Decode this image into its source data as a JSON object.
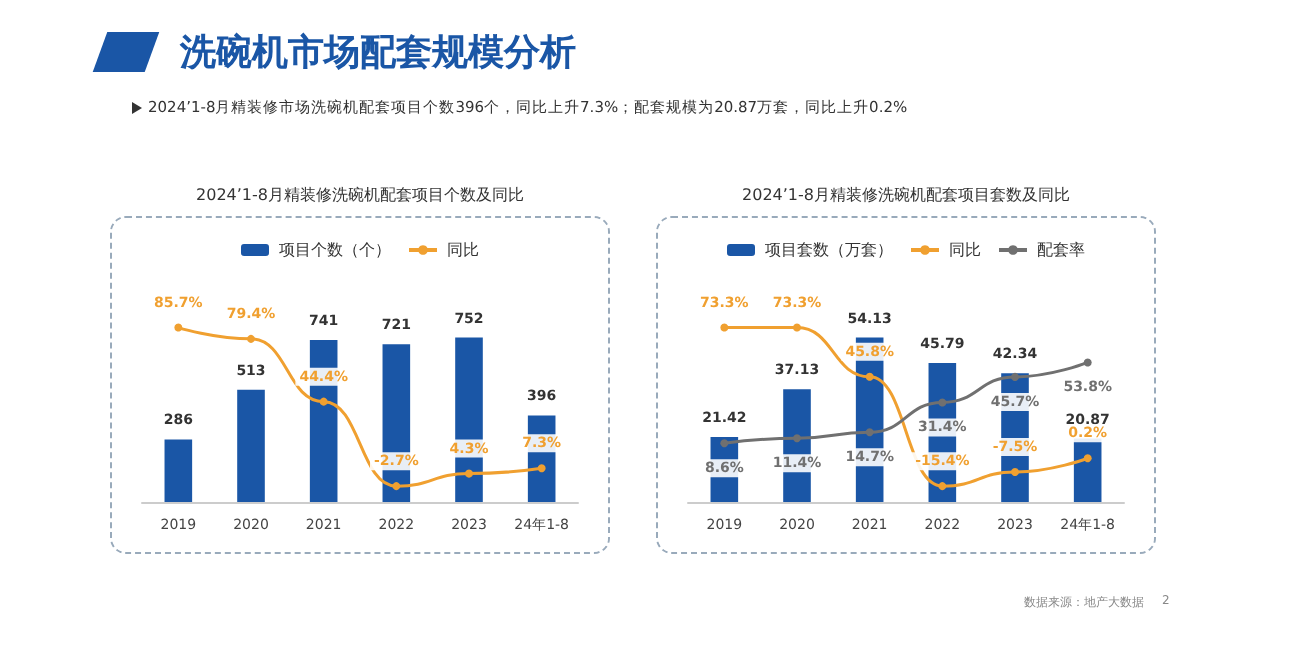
{
  "chart_data": [
    {
      "type": "other",
      "title": "洗碗机市场配套规模分析",
      "subtitle": "2024’1-8月精装修市场洗碗机配套项目个数396个，同比上升7.3%；配套规模为20.87万套，同比上升0.2%",
      "annotations": [
        "数据来源：地产大数据",
        "2"
      ]
    },
    {
      "type": "bar",
      "title": "2024’1-8月精装修洗碗机配套项目个数及同比",
      "categories": [
        "2019",
        "2020",
        "2021",
        "2022",
        "2023",
        "24年1-8"
      ],
      "legend": "top",
      "tick_labels": "x",
      "marker": "circle",
      "series": [
        {
          "type": "bar",
          "name": "项目个数（个）",
          "color": "#1a56a6",
          "values": [
            286,
            513,
            741,
            721,
            752,
            396
          ],
          "value_labels": [
            "286",
            "513",
            "741",
            "721",
            "752",
            "396"
          ]
        },
        {
          "type": "line",
          "axis": "y2",
          "name": "同比",
          "color": "#f0a030",
          "values": [
            85.7,
            79.4,
            44.4,
            -2.7,
            4.3,
            7.3
          ],
          "value_labels": [
            "85.7%",
            "79.4%",
            "44.4%",
            "-2.7%",
            "4.3%",
            "7.3%"
          ]
        }
      ]
    },
    {
      "type": "bar",
      "title": "2024’1-8月精装修洗碗机配套项目套数及同比",
      "categories": [
        "2019",
        "2020",
        "2021",
        "2022",
        "2023",
        "24年1-8"
      ],
      "legend": "top",
      "tick_labels": "x",
      "marker": "circle",
      "series": [
        {
          "type": "bar",
          "name": "项目套数（万套）",
          "color": "#1a56a6",
          "values": [
            21.42,
            37.13,
            54.13,
            45.79,
            42.34,
            20.87
          ],
          "value_labels": [
            "21.42",
            "37.13",
            "54.13",
            "45.79",
            "42.34",
            "20.87"
          ]
        },
        {
          "type": "line",
          "axis": "y2",
          "name": "同比",
          "color": "#f0a030",
          "values": [
            73.3,
            73.3,
            45.8,
            -15.4,
            -7.5,
            0.2
          ],
          "value_labels": [
            "73.3%",
            "73.3%",
            "45.8%",
            "-15.4%",
            "-7.5%",
            "0.2%"
          ]
        },
        {
          "type": "line",
          "axis": "y2",
          "name": "配套率",
          "color": "#707070",
          "values": [
            8.6,
            11.4,
            14.7,
            31.4,
            45.7,
            53.8
          ],
          "value_labels": [
            "8.6%",
            "11.4%",
            "14.7%",
            "31.4%",
            "45.7%",
            "53.8%"
          ]
        }
      ]
    }
  ]
}
